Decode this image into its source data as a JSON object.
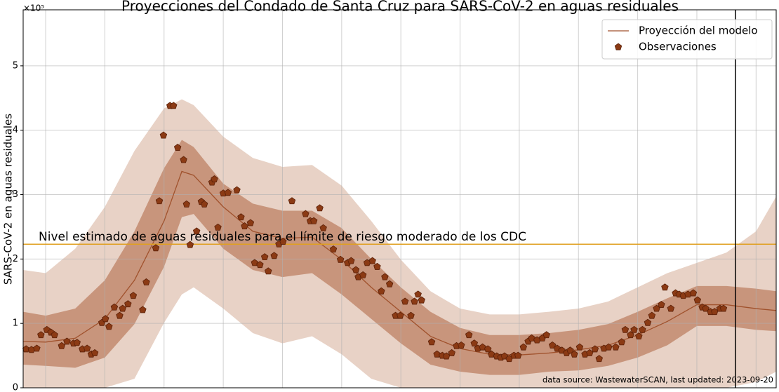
{
  "chart_data": {
    "type": "line",
    "title": "Proyecciones del Condado de Santa Cruz para SARS-CoV-2 en aguas residuales",
    "ylabel": "SARS-CoV-2 en aguas residuales",
    "y_offset_label": "×10⁵",
    "source": "data source: WastewaterSCAN, last updated: 2023-09-20",
    "xlim": [
      -0.38,
      12.34
    ],
    "xticks": [
      0,
      1,
      2,
      3,
      4,
      5,
      6,
      7,
      8,
      9,
      10,
      11,
      12
    ],
    "ylim": [
      0,
      5.87
    ],
    "yticks": [
      0,
      1,
      2,
      3,
      4,
      5
    ],
    "grid": true,
    "legend": "upper right",
    "series": [
      {
        "name": "Proyección del modelo",
        "color": "#a0522d",
        "x": [
          -0.38,
          0,
          0.5,
          1,
          1.5,
          2,
          2.3,
          2.5,
          3,
          3.5,
          4,
          4.5,
          5,
          5.5,
          6,
          6.5,
          7,
          7.5,
          8,
          8.5,
          9,
          9.5,
          10,
          10.5,
          11,
          11.5,
          12,
          12.34
        ],
        "values": [
          0.72,
          0.71,
          0.77,
          1.07,
          1.67,
          2.59,
          3.36,
          3.3,
          2.81,
          2.43,
          2.32,
          2.34,
          1.99,
          1.56,
          1.18,
          0.8,
          0.61,
          0.52,
          0.51,
          0.54,
          0.59,
          0.66,
          0.82,
          1.03,
          1.29,
          1.29,
          1.23,
          1.2
        ],
        "bands": [
          {
            "color": "#e8d2c6",
            "upper": [
              1.83,
              1.78,
              2.16,
              2.81,
              3.68,
              4.34,
              4.48,
              4.39,
              3.9,
              3.57,
              3.43,
              3.46,
              3.14,
              2.59,
              1.99,
              1.5,
              1.23,
              1.14,
              1.14,
              1.18,
              1.23,
              1.34,
              1.56,
              1.78,
              1.94,
              2.1,
              2.43,
              2.97
            ],
            "lower": [
              0,
              0,
              0,
              0,
              0.14,
              1.01,
              1.45,
              1.56,
              1.23,
              0.85,
              0.69,
              0.8,
              0.52,
              0.14,
              0,
              0,
              0,
              0,
              0,
              0,
              0,
              0,
              0,
              0,
              0,
              0,
              0.09,
              0.25
            ]
          },
          {
            "color": "#c8957c",
            "upper": [
              1.18,
              1.12,
              1.23,
              1.67,
              2.43,
              3.41,
              3.85,
              3.74,
              3.17,
              2.86,
              2.75,
              2.75,
              2.48,
              2.0,
              1.56,
              1.18,
              0.93,
              0.82,
              0.82,
              0.85,
              0.9,
              0.99,
              1.18,
              1.39,
              1.58,
              1.58,
              1.54,
              1.5
            ],
            "lower": [
              0.36,
              0.34,
              0.31,
              0.47,
              0.99,
              1.88,
              2.65,
              2.7,
              2.16,
              1.83,
              1.72,
              1.78,
              1.45,
              1.07,
              0.69,
              0.36,
              0.25,
              0.2,
              0.2,
              0.25,
              0.27,
              0.34,
              0.47,
              0.66,
              0.96,
              0.96,
              0.9,
              0.88
            ]
          }
        ]
      },
      {
        "name": "Observaciones",
        "type": "scatter",
        "color": "#8b3a14",
        "x": [
          -0.33,
          -0.24,
          -0.15,
          -0.08,
          0.02,
          0.09,
          0.15,
          0.27,
          0.36,
          0.47,
          0.53,
          0.62,
          0.7,
          0.77,
          0.83,
          0.95,
          1.01,
          1.07,
          1.16,
          1.25,
          1.3,
          1.39,
          1.48,
          1.64,
          1.7,
          1.86,
          1.92,
          1.99,
          2.1,
          2.16,
          2.23,
          2.33,
          2.38,
          2.44,
          2.55,
          2.63,
          2.68,
          2.81,
          2.85,
          2.91,
          3.0,
          3.08,
          3.23,
          3.3,
          3.36,
          3.46,
          3.53,
          3.62,
          3.7,
          3.76,
          3.86,
          3.94,
          4.01,
          4.16,
          4.39,
          4.47,
          4.53,
          4.63,
          4.69,
          4.86,
          4.98,
          5.1,
          5.16,
          5.24,
          5.28,
          5.36,
          5.43,
          5.52,
          5.6,
          5.67,
          5.73,
          5.81,
          5.91,
          5.99,
          6.07,
          6.17,
          6.23,
          6.29,
          6.35,
          6.52,
          6.61,
          6.7,
          6.77,
          6.86,
          6.94,
          7.02,
          7.15,
          7.24,
          7.3,
          7.38,
          7.47,
          7.53,
          7.62,
          7.69,
          7.75,
          7.83,
          7.91,
          7.98,
          8.07,
          8.15,
          8.21,
          8.3,
          8.39,
          8.46,
          8.56,
          8.64,
          8.72,
          8.8,
          8.86,
          8.93,
          9.02,
          9.11,
          9.19,
          9.28,
          9.35,
          9.43,
          9.51,
          9.63,
          9.73,
          9.79,
          9.88,
          9.94,
          10.02,
          10.08,
          10.17,
          10.24,
          10.32,
          10.4,
          10.46,
          10.56,
          10.64,
          10.7,
          10.77,
          10.85,
          10.94,
          11.01,
          11.09,
          11.15,
          11.23,
          11.3,
          11.39,
          11.45
        ],
        "values": [
          0.6,
          0.59,
          0.61,
          0.82,
          0.9,
          0.86,
          0.82,
          0.65,
          0.72,
          0.69,
          0.7,
          0.6,
          0.61,
          0.52,
          0.54,
          1.01,
          1.07,
          0.95,
          1.25,
          1.12,
          1.23,
          1.3,
          1.43,
          1.21,
          1.64,
          2.17,
          2.9,
          3.92,
          4.38,
          4.38,
          3.73,
          3.54,
          2.85,
          2.22,
          2.43,
          2.89,
          2.85,
          3.19,
          3.24,
          2.49,
          3.02,
          3.03,
          3.07,
          2.65,
          2.51,
          2.56,
          1.94,
          1.91,
          2.03,
          1.81,
          2.05,
          2.23,
          2.27,
          2.9,
          2.7,
          2.59,
          2.59,
          2.79,
          2.48,
          2.15,
          1.99,
          1.94,
          1.97,
          1.83,
          1.72,
          1.75,
          1.94,
          1.97,
          1.88,
          1.5,
          1.72,
          1.61,
          1.12,
          1.12,
          1.34,
          1.12,
          1.34,
          1.45,
          1.36,
          0.71,
          0.52,
          0.5,
          0.49,
          0.54,
          0.65,
          0.66,
          0.82,
          0.69,
          0.61,
          0.63,
          0.6,
          0.52,
          0.49,
          0.47,
          0.49,
          0.45,
          0.5,
          0.5,
          0.63,
          0.72,
          0.77,
          0.74,
          0.77,
          0.82,
          0.66,
          0.61,
          0.58,
          0.54,
          0.58,
          0.52,
          0.63,
          0.52,
          0.54,
          0.6,
          0.45,
          0.61,
          0.63,
          0.63,
          0.71,
          0.9,
          0.82,
          0.9,
          0.8,
          0.9,
          1.01,
          1.12,
          1.23,
          1.29,
          1.56,
          1.23,
          1.47,
          1.45,
          1.43,
          1.45,
          1.47,
          1.36,
          1.25,
          1.23,
          1.18,
          1.18,
          1.23,
          1.23
        ]
      }
    ],
    "hline": {
      "value": 2.23,
      "color": "#e0a020",
      "label": "Nivel estimado de aguas residuales para el límite de riesgo moderado de los CDC",
      "label_color": "#7a5200"
    },
    "vline": {
      "value": 11.65,
      "color": "#000000"
    }
  }
}
